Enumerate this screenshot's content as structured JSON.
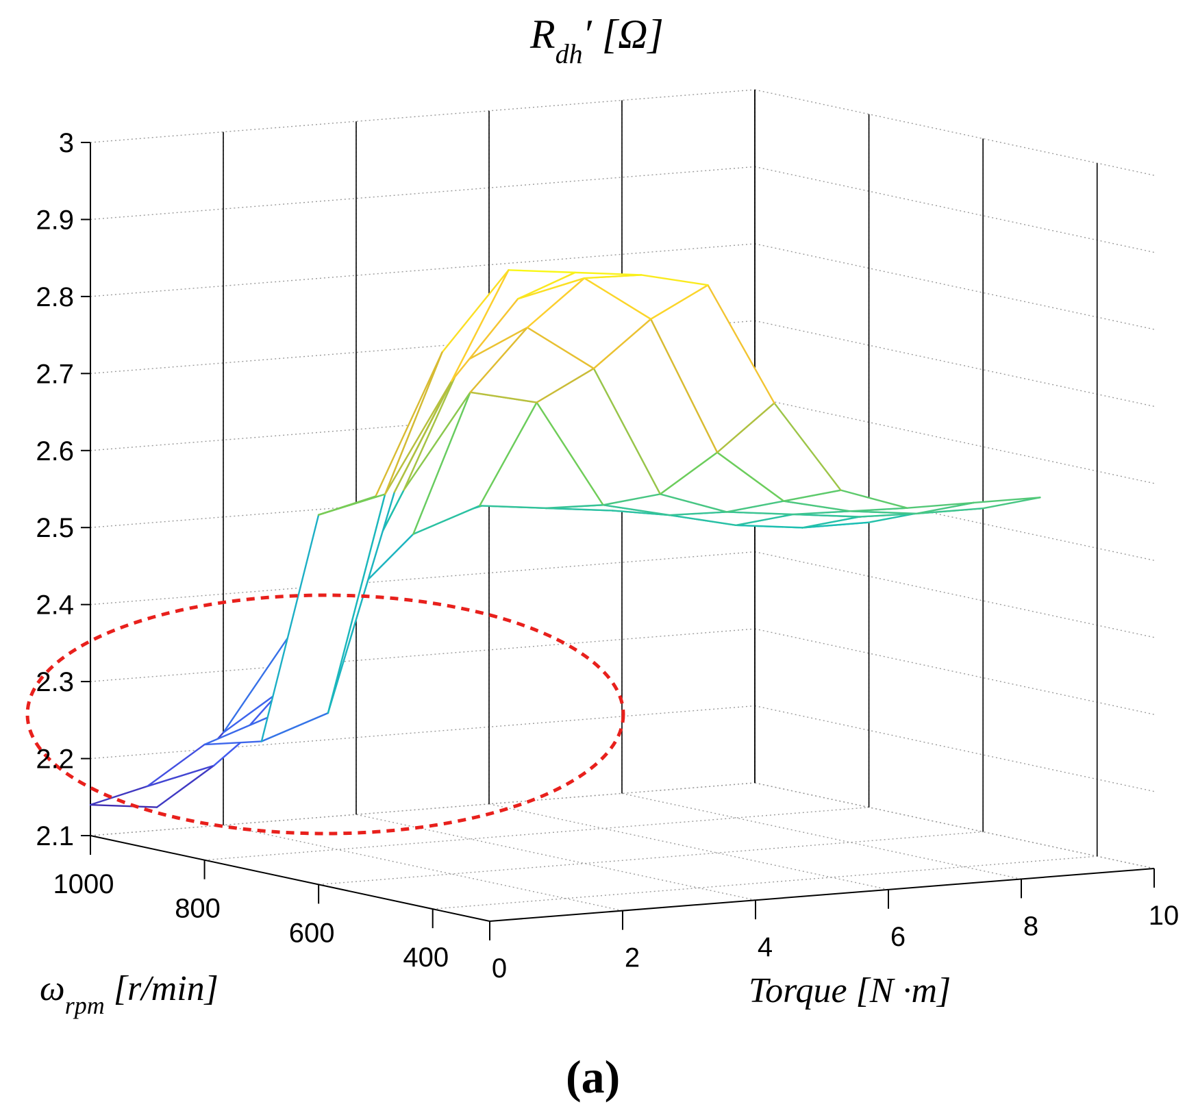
{
  "chart_data": {
    "type": "surface_3d_mesh",
    "title": {
      "main": "R",
      "sub": "dh",
      "tail": "′ [Ω]"
    },
    "zlabel": "R_dh′ [Ω]",
    "xlabel": "Torque [N ·m]",
    "ylabel": {
      "main": "ω",
      "sub": "rpm",
      "tail": " [r/min]"
    },
    "panel_label": "(a)",
    "x_ticks": [
      "0",
      "2",
      "4",
      "6",
      "8",
      "10"
    ],
    "y_ticks": [
      "1000",
      "800",
      "600",
      "400"
    ],
    "z_ticks": [
      "2.1",
      "2.2",
      "2.3",
      "2.4",
      "2.5",
      "2.6",
      "2.7",
      "2.8",
      "2.9",
      "3"
    ],
    "xlim": [
      0,
      10
    ],
    "ylim": [
      300,
      1000
    ],
    "zlim": [
      2.1,
      3.0
    ],
    "torque_values": [
      0,
      1,
      2,
      3,
      4,
      5,
      6,
      7,
      8,
      9,
      10
    ],
    "speed_values": [
      1000,
      900,
      800,
      700,
      600,
      500
    ],
    "z_values": [
      [
        2.14,
        2.13,
        2.22,
        2.34,
        2.42,
        2.47,
        2.49,
        2.5,
        2.49,
        2.5,
        2.5
      ],
      [
        2.18,
        2.2,
        2.29,
        2.4,
        2.48,
        2.51,
        2.5,
        2.49,
        2.49,
        2.48,
        2.48
      ],
      [
        2.25,
        2.28,
        2.4,
        2.56,
        2.68,
        2.66,
        2.52,
        2.5,
        2.48,
        2.47,
        2.47
      ],
      [
        2.27,
        2.3,
        2.58,
        2.74,
        2.78,
        2.72,
        2.55,
        2.52,
        2.51,
        2.5,
        2.5
      ],
      [
        2.58,
        2.6,
        2.74,
        2.84,
        2.86,
        2.8,
        2.62,
        2.55,
        2.53,
        2.52,
        2.52
      ],
      [
        2.62,
        2.8,
        2.9,
        2.89,
        2.88,
        2.86,
        2.7,
        2.58,
        2.55,
        2.55,
        2.55
      ]
    ],
    "colormap": "parula",
    "annotation": {
      "shape": "dashed-ellipse",
      "color": "#e8201c",
      "region": "low torque, low R_dh′"
    }
  }
}
